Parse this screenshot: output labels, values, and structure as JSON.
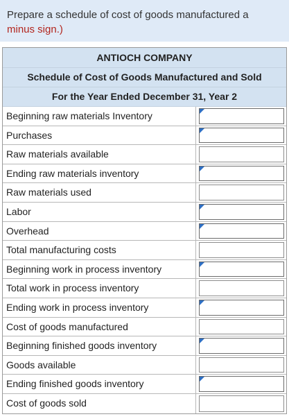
{
  "instructions": {
    "line1": "Prepare a schedule of cost of goods manufactured a",
    "line2": "minus sign.)"
  },
  "schedule": {
    "company": "ANTIOCH COMPANY",
    "title": "Schedule of Cost of Goods Manufactured and Sold",
    "period": "For the Year Ended December 31, Year 2",
    "rows": [
      {
        "label": "Beginning raw materials Inventory",
        "input": "dropdown"
      },
      {
        "label": "Purchases",
        "input": "dropdown"
      },
      {
        "label": "Raw materials available",
        "input": "text"
      },
      {
        "label": "Ending raw materials inventory",
        "input": "dropdown"
      },
      {
        "label": "Raw materials used",
        "input": "text"
      },
      {
        "label": "Labor",
        "input": "dropdown"
      },
      {
        "label": "Overhead",
        "input": "dropdown"
      },
      {
        "label": "Total manufacturing costs",
        "input": "text"
      },
      {
        "label": "Beginning work in process inventory",
        "input": "dropdown"
      },
      {
        "label": "Total work in process inventory",
        "input": "text"
      },
      {
        "label": "Ending work in process inventory",
        "input": "dropdown"
      },
      {
        "label": "Cost of goods manufactured",
        "input": "text"
      },
      {
        "label": "Beginning finished goods inventory",
        "input": "dropdown"
      },
      {
        "label": "Goods available",
        "input": "text"
      },
      {
        "label": "Ending finished goods inventory",
        "input": "dropdown"
      },
      {
        "label": "Cost of goods sold",
        "input": "text"
      }
    ]
  }
}
